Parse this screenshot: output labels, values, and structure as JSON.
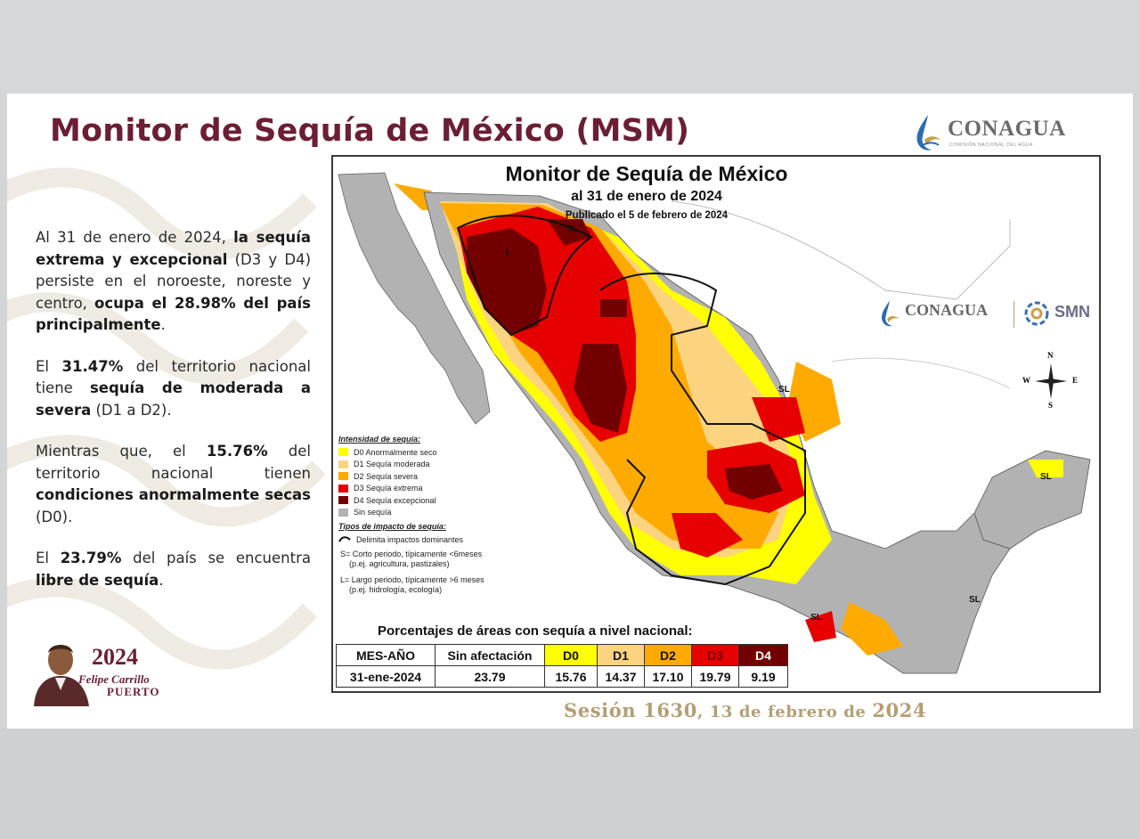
{
  "slide": {
    "title": "Monitor de Sequía de México (MSM)",
    "conagua_label": "CONAGUA",
    "conagua_sub": "COMISIÓN NACIONAL DEL AGUA"
  },
  "text": {
    "p1": {
      "a": "Al 31 de enero de 2024, ",
      "b": "la sequía extrema y excepcional",
      "c": " (D3 y D4) persiste en el noroeste, noreste y centro, ",
      "d": "ocupa el 28.98% del país principalmente",
      "e": "."
    },
    "p2": {
      "a": "El ",
      "b": "31.47%",
      "c": " del territorio nacional tiene ",
      "d": "sequía de moderada a severa",
      "e": " (D1 a D2)."
    },
    "p3": {
      "a": "Mientras que, el ",
      "b": "15.76%",
      "c": " del territorio nacional tienen ",
      "d": "condiciones anormalmente secas",
      "e": " (D0)."
    },
    "p4": {
      "a": "El ",
      "b": "23.79%",
      "c": " del país se encuentra ",
      "d": "libre de sequía",
      "e": "."
    }
  },
  "footer": {
    "year": "2024",
    "name1": "Felipe Carrillo",
    "name2": "PUERTO",
    "session_a": "Sesión ",
    "session_num": "1630",
    "session_b": ", 13 de febrero de ",
    "session_year": "2024"
  },
  "map": {
    "title": "Monitor de Sequía de México",
    "subtitle": "al 31 de enero de 2024",
    "published": "Publicado el 5 de febrero de 2024",
    "logo_conagua": "CONAGUA",
    "logo_smn": "SMN",
    "compass": {
      "n": "N",
      "s": "S",
      "e": "E",
      "w": "W"
    },
    "region_labels": {
      "l": "L",
      "sl": "SL"
    },
    "legend": {
      "title": "Intensidad de sequía:",
      "items": [
        {
          "label": "D0 Anormalmente seco",
          "color": "#ffff00"
        },
        {
          "label": "D1 Sequía moderada",
          "color": "#fcd37f"
        },
        {
          "label": "D2 Sequía severa",
          "color": "#ffaa00"
        },
        {
          "label": "D3 Sequía extrema",
          "color": "#e60000"
        },
        {
          "label": "D4 Sequía excepcional",
          "color": "#730000"
        },
        {
          "label": "Sin sequía",
          "color": "#b2b2b2"
        }
      ],
      "impact_title": "Tipos de impacto de sequía:",
      "impact_line": "Delimita impactos dominantes",
      "impact_s": "S= Corto periodo, típicamente <6meses",
      "impact_s_ex": "(p.ej. agricultura, pastizales)",
      "impact_l": "L= Largo periodo, típicamente >6 meses",
      "impact_l_ex": "(p.ej. hidrología, ecología)"
    },
    "pct_title": "Porcentajes de áreas con sequía a nivel nacional:",
    "table": {
      "headers": [
        "MES-AÑO",
        "Sin afectación",
        "D0",
        "D1",
        "D2",
        "D3",
        "D4"
      ],
      "header_colors": [
        "#ffffff",
        "#ffffff",
        "#ffff00",
        "#fcd37f",
        "#ffaa00",
        "#e60000",
        "#730000"
      ],
      "row": [
        "31-ene-2024",
        "23.79",
        "15.76",
        "14.37",
        "17.10",
        "19.79",
        "9.19"
      ]
    }
  }
}
